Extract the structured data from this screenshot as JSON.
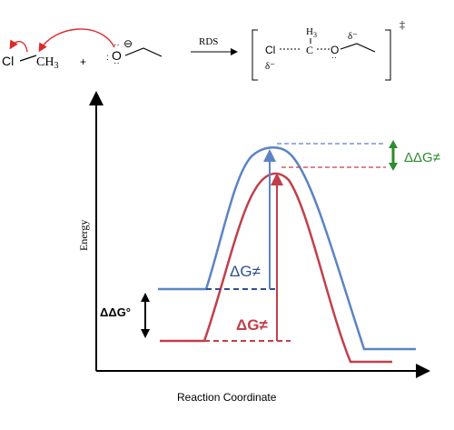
{
  "reaction": {
    "reactant1": {
      "cl": "Cl",
      "ch3": "CH",
      "ch3_sub": "3"
    },
    "plus": "+",
    "nucleophile": {
      "o": "O",
      "charge": "⊖",
      "lone_pairs": "··"
    },
    "arrow_label": "RDS",
    "transition_state": {
      "cl": "Cl",
      "h3": "H",
      "h3_sub": "3",
      "c": "C",
      "o": "O",
      "delta_top": "δ⁻",
      "delta_left": "δ⁻",
      "double_dagger": "‡",
      "lone_pairs": "··"
    }
  },
  "diagram": {
    "y_axis_label": "Energy",
    "x_axis_label": "Reaction Coordinate",
    "labels": {
      "dg_blue": "ΔG≠",
      "dg_red": "ΔG≠",
      "ddg_green": "ΔΔG≠",
      "ddg_zero": "ΔΔG°"
    },
    "colors": {
      "blue": "#5b84c4",
      "blue_dark": "#2f4f8f",
      "red": "#c0404a",
      "green": "#2e8b2e",
      "arrow_red": "#e0282a",
      "black": "#000000"
    }
  }
}
